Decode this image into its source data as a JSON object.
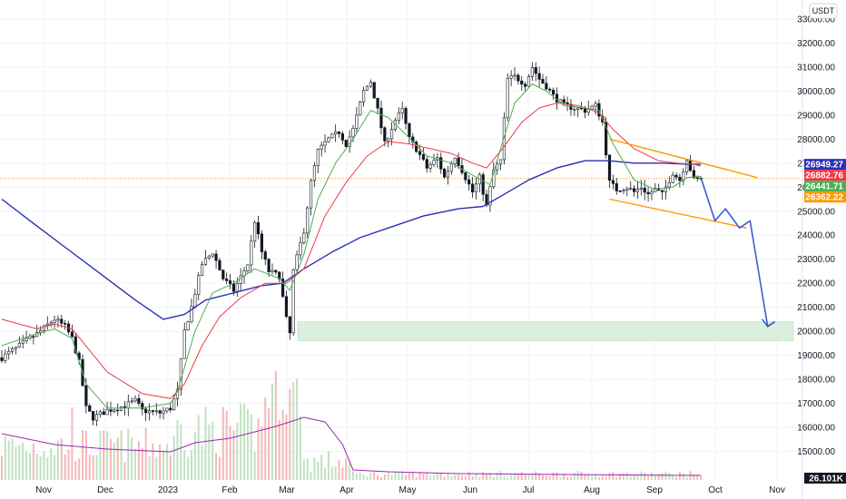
{
  "chart_data": {
    "type": "candlestick",
    "currency": "USDT",
    "ylim": [
      14500,
      33800
    ],
    "y_ticks": [
      15000,
      16000,
      17000,
      18000,
      19000,
      20000,
      21000,
      22000,
      23000,
      24000,
      25000,
      26000,
      27000,
      28000,
      29000,
      30000,
      31000,
      32000,
      33000
    ],
    "y_tick_labels": [
      "15000.00",
      "16000.00",
      "17000.00",
      "18000.00",
      "19000.00",
      "20000.00",
      "21000.00",
      "22000.00",
      "23000.00",
      "24000.00",
      "25000.00",
      "26000.00",
      "27000.00",
      "28000.00",
      "29000.00",
      "30000.00",
      "31000.00",
      "32000.00",
      "33000.00"
    ],
    "x_labels": [
      "Nov",
      "Dec",
      "2023",
      "Feb",
      "Mar",
      "Apr",
      "May",
      "Jun",
      "Jul",
      "Aug",
      "Sep",
      "Oct",
      "Nov"
    ],
    "price_tags": [
      {
        "value": 26949.27,
        "label": "26949.27",
        "color": "#2a2eb8"
      },
      {
        "value": 26882.76,
        "label": "26882.76",
        "color": "#f23645"
      },
      {
        "value": 26441.71,
        "label": "26441.71",
        "color": "#4caf50"
      },
      {
        "value": 26362.22,
        "label": "26362.22",
        "color": "#ff9800"
      }
    ],
    "volume_tag": {
      "label": "26.101K",
      "color": "#131722"
    },
    "price_path": [
      [
        0,
        18900
      ],
      [
        5,
        19400
      ],
      [
        10,
        19900
      ],
      [
        15,
        20500
      ],
      [
        18,
        20200
      ],
      [
        20,
        19700
      ],
      [
        22,
        18700
      ],
      [
        24,
        16800
      ],
      [
        26,
        16400
      ],
      [
        30,
        16700
      ],
      [
        35,
        16900
      ],
      [
        38,
        17100
      ],
      [
        40,
        16700
      ],
      [
        45,
        16600
      ],
      [
        48,
        16800
      ],
      [
        50,
        17500
      ],
      [
        52,
        20000
      ],
      [
        54,
        21000
      ],
      [
        57,
        22800
      ],
      [
        60,
        23300
      ],
      [
        63,
        22200
      ],
      [
        66,
        21700
      ],
      [
        70,
        22800
      ],
      [
        72,
        24600
      ],
      [
        74,
        23300
      ],
      [
        76,
        22500
      ],
      [
        79,
        22300
      ],
      [
        81,
        20500
      ],
      [
        82,
        19900
      ],
      [
        83,
        22500
      ],
      [
        86,
        24200
      ],
      [
        88,
        26200
      ],
      [
        90,
        27500
      ],
      [
        93,
        28000
      ],
      [
        96,
        28300
      ],
      [
        98,
        27800
      ],
      [
        100,
        28400
      ],
      [
        103,
        30000
      ],
      [
        105,
        30400
      ],
      [
        107,
        29200
      ],
      [
        109,
        27800
      ],
      [
        112,
        28800
      ],
      [
        114,
        29200
      ],
      [
        116,
        28000
      ],
      [
        118,
        27600
      ],
      [
        121,
        26800
      ],
      [
        124,
        27200
      ],
      [
        126,
        26400
      ],
      [
        129,
        27300
      ],
      [
        131,
        26700
      ],
      [
        134,
        25800
      ],
      [
        136,
        26400
      ],
      [
        138,
        25200
      ],
      [
        140,
        26700
      ],
      [
        142,
        27100
      ],
      [
        144,
        30500
      ],
      [
        146,
        30600
      ],
      [
        149,
        30300
      ],
      [
        151,
        31000
      ],
      [
        153,
        30500
      ],
      [
        155,
        30200
      ],
      [
        157,
        29800
      ],
      [
        160,
        29400
      ],
      [
        163,
        29300
      ],
      [
        166,
        29200
      ],
      [
        169,
        29400
      ],
      [
        171,
        28700
      ],
      [
        173,
        26200
      ],
      [
        175,
        25900
      ],
      [
        178,
        26000
      ],
      [
        180,
        25800
      ],
      [
        182,
        26000
      ],
      [
        184,
        25700
      ],
      [
        186,
        25900
      ],
      [
        188,
        25700
      ],
      [
        191,
        26600
      ],
      [
        193,
        26300
      ],
      [
        195,
        27200
      ],
      [
        197,
        26300
      ],
      [
        199,
        26360
      ]
    ],
    "ma_green": [
      [
        0,
        19400
      ],
      [
        10,
        19900
      ],
      [
        15,
        20100
      ],
      [
        20,
        19700
      ],
      [
        24,
        17800
      ],
      [
        30,
        16800
      ],
      [
        40,
        16800
      ],
      [
        48,
        17000
      ],
      [
        50,
        17500
      ],
      [
        55,
        20000
      ],
      [
        60,
        21600
      ],
      [
        66,
        22000
      ],
      [
        72,
        22600
      ],
      [
        79,
        22200
      ],
      [
        82,
        21700
      ],
      [
        86,
        23200
      ],
      [
        90,
        25500
      ],
      [
        95,
        27000
      ],
      [
        100,
        28000
      ],
      [
        105,
        29200
      ],
      [
        110,
        28900
      ],
      [
        115,
        28200
      ],
      [
        121,
        27300
      ],
      [
        128,
        27000
      ],
      [
        134,
        26500
      ],
      [
        139,
        26100
      ],
      [
        142,
        27600
      ],
      [
        146,
        29500
      ],
      [
        151,
        30300
      ],
      [
        155,
        30000
      ],
      [
        160,
        29400
      ],
      [
        166,
        29300
      ],
      [
        170,
        29200
      ],
      [
        174,
        27800
      ],
      [
        180,
        26300
      ],
      [
        186,
        25900
      ],
      [
        191,
        26000
      ],
      [
        195,
        26400
      ],
      [
        199,
        26450
      ]
    ],
    "ma_red": [
      [
        0,
        20500
      ],
      [
        10,
        20100
      ],
      [
        15,
        20300
      ],
      [
        20,
        20100
      ],
      [
        25,
        19200
      ],
      [
        30,
        18300
      ],
      [
        40,
        17400
      ],
      [
        48,
        17200
      ],
      [
        52,
        17800
      ],
      [
        57,
        19400
      ],
      [
        62,
        20600
      ],
      [
        68,
        21400
      ],
      [
        75,
        22000
      ],
      [
        81,
        22000
      ],
      [
        86,
        22600
      ],
      [
        92,
        24800
      ],
      [
        98,
        26200
      ],
      [
        104,
        27300
      ],
      [
        110,
        27900
      ],
      [
        116,
        27800
      ],
      [
        122,
        27600
      ],
      [
        128,
        27400
      ],
      [
        134,
        27000
      ],
      [
        138,
        26800
      ],
      [
        142,
        27500
      ],
      [
        148,
        28700
      ],
      [
        153,
        29300
      ],
      [
        158,
        29500
      ],
      [
        164,
        29400
      ],
      [
        170,
        29100
      ],
      [
        174,
        28400
      ],
      [
        180,
        27600
      ],
      [
        187,
        27100
      ],
      [
        192,
        27000
      ],
      [
        197,
        26950
      ],
      [
        199,
        26880
      ]
    ],
    "ma_blue": [
      [
        0,
        25500
      ],
      [
        8,
        24600
      ],
      [
        18,
        23500
      ],
      [
        28,
        22400
      ],
      [
        38,
        21300
      ],
      [
        46,
        20500
      ],
      [
        52,
        20700
      ],
      [
        58,
        21300
      ],
      [
        66,
        21600
      ],
      [
        74,
        21900
      ],
      [
        80,
        22000
      ],
      [
        86,
        22600
      ],
      [
        94,
        23300
      ],
      [
        102,
        23900
      ],
      [
        110,
        24300
      ],
      [
        120,
        24800
      ],
      [
        130,
        25100
      ],
      [
        137,
        25200
      ],
      [
        143,
        25700
      ],
      [
        150,
        26300
      ],
      [
        158,
        26800
      ],
      [
        166,
        27100
      ],
      [
        173,
        27100
      ],
      [
        180,
        27000
      ],
      [
        188,
        27000
      ],
      [
        195,
        26960
      ],
      [
        199,
        26950
      ]
    ],
    "channel_upper": [
      [
        173,
        28000
      ],
      [
        199,
        27500
      ]
    ],
    "channel_lower": [
      [
        173,
        25500
      ],
      [
        199,
        24300
      ]
    ],
    "channel_upper_ext": [
      [
        173,
        28000
      ],
      [
        215,
        26400
      ]
    ],
    "channel_lower_ext": [
      [
        173,
        25500
      ],
      [
        212,
        24300
      ]
    ],
    "projection": [
      [
        199,
        26400
      ],
      [
        203,
        24600
      ],
      [
        206,
        25100
      ],
      [
        210,
        24300
      ],
      [
        213,
        24600
      ],
      [
        218,
        20200
      ],
      [
        220,
        20400
      ]
    ],
    "support_zone": [
      19600,
      20400
    ]
  }
}
